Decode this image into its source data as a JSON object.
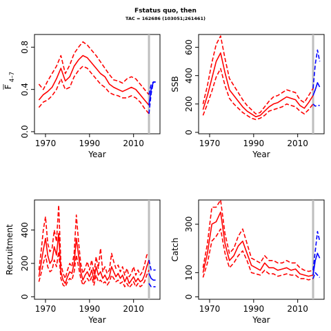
{
  "title": "Fstatus quo, then",
  "subtitle": "TAC = 162686 (103051;261461)",
  "colors": {
    "history": "#ff0000",
    "forecast": "#0000ff",
    "marker": "#bebebe",
    "axis": "#000000"
  },
  "chart_data": [
    {
      "type": "line",
      "id": "fbar",
      "xlabel": "Year",
      "ylabel": "F̄4–7",
      "ylabel_base": "F",
      "ylabel_sub": "4–7",
      "xlim": [
        1965,
        2022
      ],
      "ylim": [
        -0.02,
        0.92
      ],
      "xticks": [
        1970,
        1990,
        2010
      ],
      "yticks": [
        0.0,
        0.4,
        0.8
      ],
      "yticklabels": [
        "0.0",
        "0.4",
        "0.8"
      ],
      "marker_year": 2017,
      "history": {
        "x": [
          1967,
          1969,
          1971,
          1973,
          1975,
          1977,
          1979,
          1981,
          1983,
          1985,
          1987,
          1989,
          1991,
          1993,
          1995,
          1997,
          1999,
          2001,
          2003,
          2005,
          2007,
          2009,
          2011,
          2013,
          2015,
          2017
        ],
        "median": [
          0.3,
          0.35,
          0.38,
          0.42,
          0.5,
          0.6,
          0.48,
          0.52,
          0.62,
          0.68,
          0.72,
          0.7,
          0.65,
          0.6,
          0.55,
          0.52,
          0.45,
          0.42,
          0.4,
          0.38,
          0.4,
          0.42,
          0.4,
          0.35,
          0.3,
          0.25
        ],
        "upper": [
          0.45,
          0.4,
          0.48,
          0.55,
          0.62,
          0.72,
          0.55,
          0.63,
          0.74,
          0.8,
          0.85,
          0.82,
          0.77,
          0.72,
          0.66,
          0.6,
          0.54,
          0.49,
          0.48,
          0.46,
          0.5,
          0.52,
          0.5,
          0.45,
          0.4,
          0.35
        ],
        "lower": [
          0.23,
          0.28,
          0.3,
          0.34,
          0.4,
          0.5,
          0.4,
          0.42,
          0.52,
          0.58,
          0.62,
          0.6,
          0.55,
          0.5,
          0.45,
          0.42,
          0.37,
          0.35,
          0.34,
          0.32,
          0.32,
          0.34,
          0.32,
          0.28,
          0.22,
          0.17
        ]
      },
      "forecast": {
        "x": [
          2017,
          2018,
          2019,
          2020
        ],
        "median": [
          0.25,
          0.4,
          0.47,
          0.47
        ],
        "upper": [
          0.35,
          0.45,
          0.47,
          0.47
        ],
        "lower": [
          0.17,
          0.36,
          0.47,
          0.47
        ]
      }
    },
    {
      "type": "line",
      "id": "ssb",
      "xlabel": "Year",
      "ylabel": "SSB",
      "xlim": [
        1965,
        2022
      ],
      "ylim": [
        -10,
        690
      ],
      "xticks": [
        1970,
        1990,
        2010
      ],
      "yticks": [
        0,
        200,
        400,
        600
      ],
      "yticklabels": [
        "0",
        "200",
        "400",
        "600"
      ],
      "marker_year": 2017,
      "history": {
        "x": [
          1967,
          1969,
          1971,
          1973,
          1975,
          1977,
          1979,
          1981,
          1983,
          1985,
          1987,
          1989,
          1991,
          1993,
          1995,
          1997,
          1999,
          2001,
          2003,
          2005,
          2007,
          2009,
          2011,
          2013,
          2015,
          2017
        ],
        "median": [
          160,
          260,
          380,
          500,
          560,
          420,
          300,
          260,
          220,
          180,
          150,
          130,
          110,
          120,
          150,
          180,
          200,
          210,
          230,
          250,
          240,
          230,
          190,
          170,
          210,
          260
        ],
        "upper": [
          200,
          330,
          490,
          620,
          680,
          520,
          380,
          330,
          280,
          230,
          190,
          160,
          130,
          140,
          180,
          220,
          250,
          260,
          280,
          300,
          290,
          280,
          230,
          210,
          260,
          310
        ],
        "lower": [
          120,
          200,
          290,
          390,
          450,
          330,
          240,
          200,
          170,
          140,
          120,
          100,
          90,
          100,
          120,
          150,
          160,
          170,
          180,
          200,
          190,
          180,
          150,
          130,
          160,
          200
        ]
      },
      "forecast": {
        "x": [
          2017,
          2018,
          2019,
          2020
        ],
        "median": [
          260,
          300,
          350,
          320
        ],
        "upper": [
          310,
          480,
          580,
          500
        ],
        "lower": [
          200,
          185,
          190,
          190
        ]
      }
    },
    {
      "type": "line",
      "id": "recruitment",
      "xlabel": "Year",
      "ylabel": "Recruitment",
      "xlim": [
        1965,
        2022
      ],
      "ylim": [
        -15,
        580
      ],
      "xticks": [
        1970,
        1990,
        2010
      ],
      "yticks": [
        0,
        200,
        400
      ],
      "yticklabels": [
        "0",
        "200",
        "400"
      ],
      "marker_year": 2017,
      "history": {
        "x": [
          1967,
          1968,
          1969,
          1970,
          1971,
          1972,
          1973,
          1974,
          1975,
          1976,
          1977,
          1978,
          1979,
          1980,
          1981,
          1982,
          1983,
          1984,
          1985,
          1986,
          1987,
          1988,
          1989,
          1990,
          1991,
          1992,
          1993,
          1994,
          1995,
          1996,
          1997,
          1998,
          1999,
          2000,
          2001,
          2002,
          2003,
          2004,
          2005,
          2006,
          2007,
          2008,
          2009,
          2010,
          2011,
          2012,
          2013,
          2014,
          2015,
          2016,
          2017
        ],
        "median": [
          120,
          200,
          280,
          350,
          250,
          200,
          220,
          300,
          250,
          380,
          150,
          100,
          80,
          120,
          150,
          140,
          200,
          350,
          250,
          150,
          100,
          130,
          150,
          120,
          160,
          100,
          180,
          130,
          150,
          110,
          130,
          100,
          120,
          180,
          150,
          120,
          140,
          110,
          130,
          90,
          120,
          80,
          100,
          120,
          90,
          110,
          90,
          100,
          130,
          180,
          220
        ],
        "upper": [
          160,
          270,
          400,
          480,
          320,
          270,
          290,
          400,
          330,
          550,
          200,
          140,
          110,
          160,
          200,
          180,
          260,
          490,
          330,
          200,
          140,
          170,
          210,
          160,
          220,
          140,
          240,
          170,
          290,
          150,
          180,
          140,
          160,
          260,
          210,
          170,
          190,
          150,
          180,
          130,
          170,
          120,
          140,
          180,
          130,
          160,
          130,
          150,
          190,
          250,
          260
        ],
        "lower": [
          90,
          140,
          200,
          250,
          180,
          150,
          160,
          220,
          180,
          270,
          110,
          70,
          60,
          90,
          110,
          100,
          150,
          250,
          180,
          110,
          70,
          90,
          110,
          90,
          120,
          70,
          130,
          90,
          100,
          80,
          90,
          70,
          90,
          130,
          110,
          90,
          100,
          80,
          90,
          60,
          80,
          55,
          70,
          90,
          60,
          80,
          60,
          70,
          90,
          130,
          160
        ]
      },
      "forecast": {
        "x": [
          2017,
          2018,
          2019,
          2020
        ],
        "median": [
          140,
          110,
          100,
          100
        ],
        "upper": [
          220,
          160,
          160,
          160
        ],
        "lower": [
          80,
          60,
          60,
          60
        ]
      }
    },
    {
      "type": "line",
      "id": "catch",
      "xlabel": "Year",
      "ylabel": "Catch",
      "xlim": [
        1965,
        2022
      ],
      "ylim": [
        -10,
        400
      ],
      "xticks": [
        1970,
        1990,
        2010
      ],
      "yticks": [
        0,
        100,
        300
      ],
      "yticklabels": [
        "0",
        "100",
        "300"
      ],
      "marker_year": 2017,
      "history": {
        "x": [
          1967,
          1969,
          1971,
          1973,
          1975,
          1977,
          1979,
          1981,
          1983,
          1985,
          1987,
          1989,
          1991,
          1993,
          1995,
          1997,
          1999,
          2001,
          2003,
          2005,
          2007,
          2009,
          2011,
          2013,
          2015,
          2017
        ],
        "median": [
          100,
          180,
          300,
          310,
          350,
          220,
          150,
          170,
          210,
          230,
          180,
          130,
          120,
          110,
          140,
          120,
          120,
          110,
          115,
          120,
          110,
          115,
          95,
          90,
          85,
          90
        ],
        "upper": [
          120,
          220,
          370,
          370,
          400,
          260,
          180,
          200,
          250,
          280,
          220,
          160,
          150,
          140,
          170,
          150,
          150,
          140,
          140,
          150,
          140,
          140,
          120,
          110,
          105,
          110
        ],
        "lower": [
          80,
          140,
          230,
          250,
          280,
          180,
          120,
          140,
          170,
          190,
          150,
          100,
          95,
          90,
          110,
          95,
          95,
          85,
          90,
          95,
          90,
          90,
          75,
          75,
          70,
          75
        ]
      },
      "forecast": {
        "x": [
          2017,
          2018,
          2019,
          2020
        ],
        "median": [
          90,
          150,
          180,
          160
        ],
        "upper": [
          110,
          190,
          270,
          230
        ],
        "lower": [
          75,
          100,
          90,
          80
        ]
      }
    }
  ]
}
